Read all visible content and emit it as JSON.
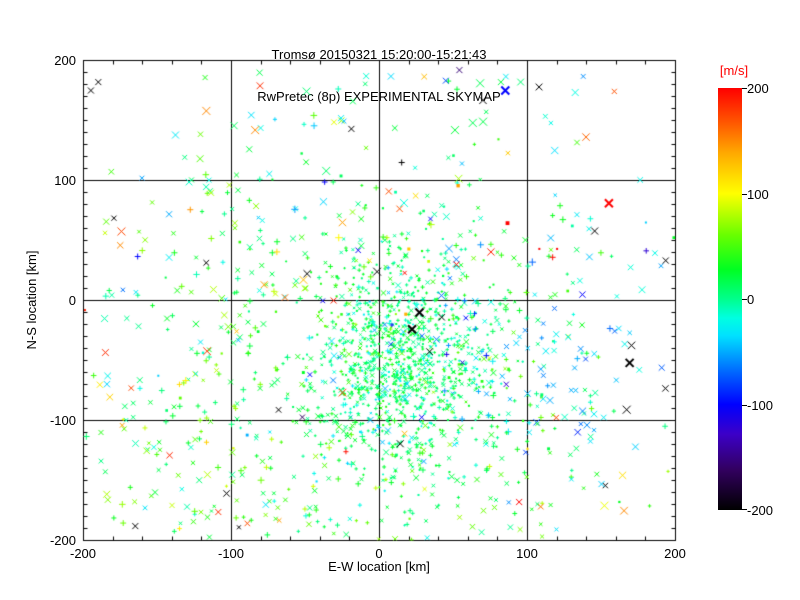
{
  "header": {
    "window_type": "scientific-skymap-plot"
  },
  "chart_data": {
    "type": "scatter",
    "title": "Tromso 20150321 15:20:00-15:21:43",
    "title_display": "Tromsø 20150321 15:20:00-15:21:43",
    "subtitle": "RwPretec (8p) EXPERIMENTAL SKYMAP",
    "xlabel": "E-W location [km]",
    "ylabel": "N-S location [km]",
    "x_range": [
      -200,
      200
    ],
    "y_range": [
      -200,
      200
    ],
    "x_ticks": [
      "-200",
      "-100",
      "0",
      "100",
      "200"
    ],
    "y_ticks": [
      "-200",
      "-100",
      "0",
      "100",
      "200"
    ],
    "x_minor_step": 20,
    "y_minor_step": 10,
    "grid_values": [
      -100,
      0,
      100
    ],
    "grid_on": true,
    "marker_types": [
      "x",
      "plus",
      "dot"
    ],
    "colorbar": {
      "unit": "[m/s]",
      "unit_color": "#ff0000",
      "ticks": [
        "200",
        "100",
        "0",
        "-100",
        "-200"
      ],
      "range": [
        -200,
        200
      ],
      "stops": [
        [
          -200,
          "#000000"
        ],
        [
          -162,
          "#32005f"
        ],
        [
          -128,
          "#3c00c8"
        ],
        [
          -100,
          "#0000ff"
        ],
        [
          -70,
          "#0064ff"
        ],
        [
          -35,
          "#00e1ff"
        ],
        [
          -18,
          "#00ffe1"
        ],
        [
          0,
          "#00ff8c"
        ],
        [
          28,
          "#00ff22"
        ],
        [
          60,
          "#66ff00"
        ],
        [
          100,
          "#ffff00"
        ],
        [
          138,
          "#ffaa00"
        ],
        [
          168,
          "#ff5500"
        ],
        [
          200,
          "#ff0000"
        ]
      ]
    },
    "n_points_estimate": 1900,
    "point_generation": {
      "note": "Dense echo cloud; points drawn from these distributions (km, m/s). seed makes it deterministic.",
      "seed": 7,
      "clusters": [
        {
          "n": 950,
          "dist": "gauss",
          "cx": 14,
          "cy": -48,
          "sx": 30,
          "sy": 44,
          "v_mean": 12,
          "v_sd": 20,
          "mix": {
            "x": 0.3,
            "plus": 0.5,
            "dot": 0.2
          },
          "size": [
            1,
            2.2
          ],
          "lw": 1
        },
        {
          "n": 420,
          "dist": "gauss",
          "cx": 0,
          "cy": -35,
          "sx": 80,
          "sy": 72,
          "v_mean": 22,
          "v_sd": 28,
          "mix": {
            "x": 0.45,
            "plus": 0.4,
            "dot": 0.15
          },
          "size": [
            1.5,
            3
          ],
          "lw": 1
        },
        {
          "n": 130,
          "dist": "gauss",
          "cx": 90,
          "cy": -55,
          "sx": 62,
          "sy": 48,
          "v_mean": -42,
          "v_sd": 26,
          "mix": {
            "x": 0.8,
            "plus": 0.2,
            "dot": 0.0
          },
          "size": [
            2,
            3.5
          ],
          "lw": 1
        },
        {
          "n": 150,
          "dist": "mixed",
          "cx": -15,
          "sx": 95,
          "y0": -200,
          "y1": -95,
          "v_mean": 32,
          "v_sd": 34,
          "mix": {
            "x": 0.6,
            "plus": 0.4,
            "dot": 0.0
          },
          "size": [
            1.5,
            3
          ],
          "lw": 1
        },
        {
          "n": 110,
          "dist": "uniform",
          "x0": -200,
          "x1": -70,
          "y0": -185,
          "y1": 110,
          "v_mean": 35,
          "v_sd": 45,
          "mix": {
            "x": 0.7,
            "plus": 0.3,
            "dot": 0.0
          },
          "size": [
            2,
            3.5
          ],
          "lw": 1
        },
        {
          "n": 70,
          "dist": "uniform",
          "x0": -140,
          "x1": 150,
          "y0": 25,
          "y1": 195,
          "v_mean": 15,
          "v_sd": 55,
          "mix": {
            "x": 0.75,
            "plus": 0.25,
            "dot": 0.0
          },
          "size": [
            2,
            4
          ],
          "lw": 1
        },
        {
          "n": 30,
          "dist": "uniform",
          "x0": -195,
          "x1": 195,
          "y0": -195,
          "y1": 195,
          "v0": 110,
          "v1": 205,
          "mix": {
            "x": 0.8,
            "plus": 0.1,
            "dot": 0.1
          },
          "size": [
            2.5,
            4
          ],
          "lw": 1
        },
        {
          "n": 16,
          "dist": "uniform",
          "x0": -195,
          "x1": 195,
          "y0": -195,
          "y1": 195,
          "v0": -200,
          "v1": -200,
          "mix": {
            "x": 1.0,
            "plus": 0.0,
            "dot": 0.0
          },
          "size": [
            2.5,
            4
          ],
          "lw": 1
        },
        {
          "n": 12,
          "dist": "uniform",
          "x0": -60,
          "x1": 195,
          "y0": -150,
          "y1": 100,
          "v0": -140,
          "v1": -75,
          "mix": {
            "x": 0.8,
            "plus": 0.2,
            "dot": 0.0
          },
          "size": [
            2,
            3.5
          ],
          "lw": 1
        }
      ]
    },
    "highlight_format": "[x_km, y_km, v_mps, marker, half_size_px, line_width]",
    "highlight_points": [
      [
        -190,
        182,
        -200,
        "x",
        3,
        1
      ],
      [
        -195,
        175,
        -200,
        "x",
        3,
        1
      ],
      [
        -117,
        158,
        150,
        "x",
        4,
        1
      ],
      [
        -9,
        187,
        -15,
        "x",
        3,
        1
      ],
      [
        -18,
        166,
        15,
        "x",
        3,
        1
      ],
      [
        -26,
        152,
        -30,
        "x",
        3,
        1
      ],
      [
        -19,
        143,
        -200,
        "x",
        3,
        1
      ],
      [
        -84,
        142,
        150,
        "x",
        4,
        1
      ],
      [
        -88,
        126,
        20,
        "x",
        3,
        1
      ],
      [
        -36,
        108,
        10,
        "x",
        4,
        1
      ],
      [
        54,
        192,
        -155,
        "x",
        3,
        1
      ],
      [
        68,
        181,
        15,
        "x",
        4,
        1
      ],
      [
        82,
        182,
        20,
        "x",
        3,
        1
      ],
      [
        85,
        175,
        -100,
        "x",
        4,
        2
      ],
      [
        63,
        148,
        15,
        "x",
        4,
        1
      ],
      [
        70,
        149,
        18,
        "x",
        4,
        1
      ],
      [
        51,
        142,
        22,
        "x",
        4,
        1
      ],
      [
        122,
        79,
        35,
        "plus",
        3,
        1
      ],
      [
        155,
        81,
        200,
        "x",
        4,
        2
      ],
      [
        180,
        65,
        -40,
        "dot",
        2,
        1
      ],
      [
        169,
        -52,
        -200,
        "x",
        4,
        2
      ],
      [
        167,
        -91,
        -200,
        "x",
        4,
        1
      ],
      [
        152,
        -171,
        95,
        "x",
        4,
        1
      ],
      [
        150,
        -153,
        -40,
        "x",
        3,
        1
      ],
      [
        -165,
        -188,
        -200,
        "x",
        3,
        1
      ],
      [
        -95,
        -189,
        -200,
        "x",
        2,
        1
      ],
      [
        27,
        -10,
        -200,
        "x",
        4,
        2
      ],
      [
        22,
        -24,
        -200,
        "x",
        4,
        2
      ],
      [
        52,
        30,
        195,
        "x",
        3,
        1
      ],
      [
        17,
        23,
        195,
        "x",
        2,
        1
      ],
      [
        -31,
        0,
        190,
        "x",
        3,
        1
      ],
      [
        108,
        43,
        200,
        "dot",
        2,
        1
      ],
      [
        120,
        43,
        200,
        "dot",
        2,
        1
      ],
      [
        117,
        36,
        195,
        "plus",
        3,
        1
      ],
      [
        15,
        115,
        -200,
        "plus",
        3,
        1
      ],
      [
        -199,
        -8,
        190,
        "dot",
        2,
        1
      ]
    ],
    "legend_position": "colorbar-right",
    "plot_frame_color": "#000000",
    "background_color": "#ffffff"
  }
}
